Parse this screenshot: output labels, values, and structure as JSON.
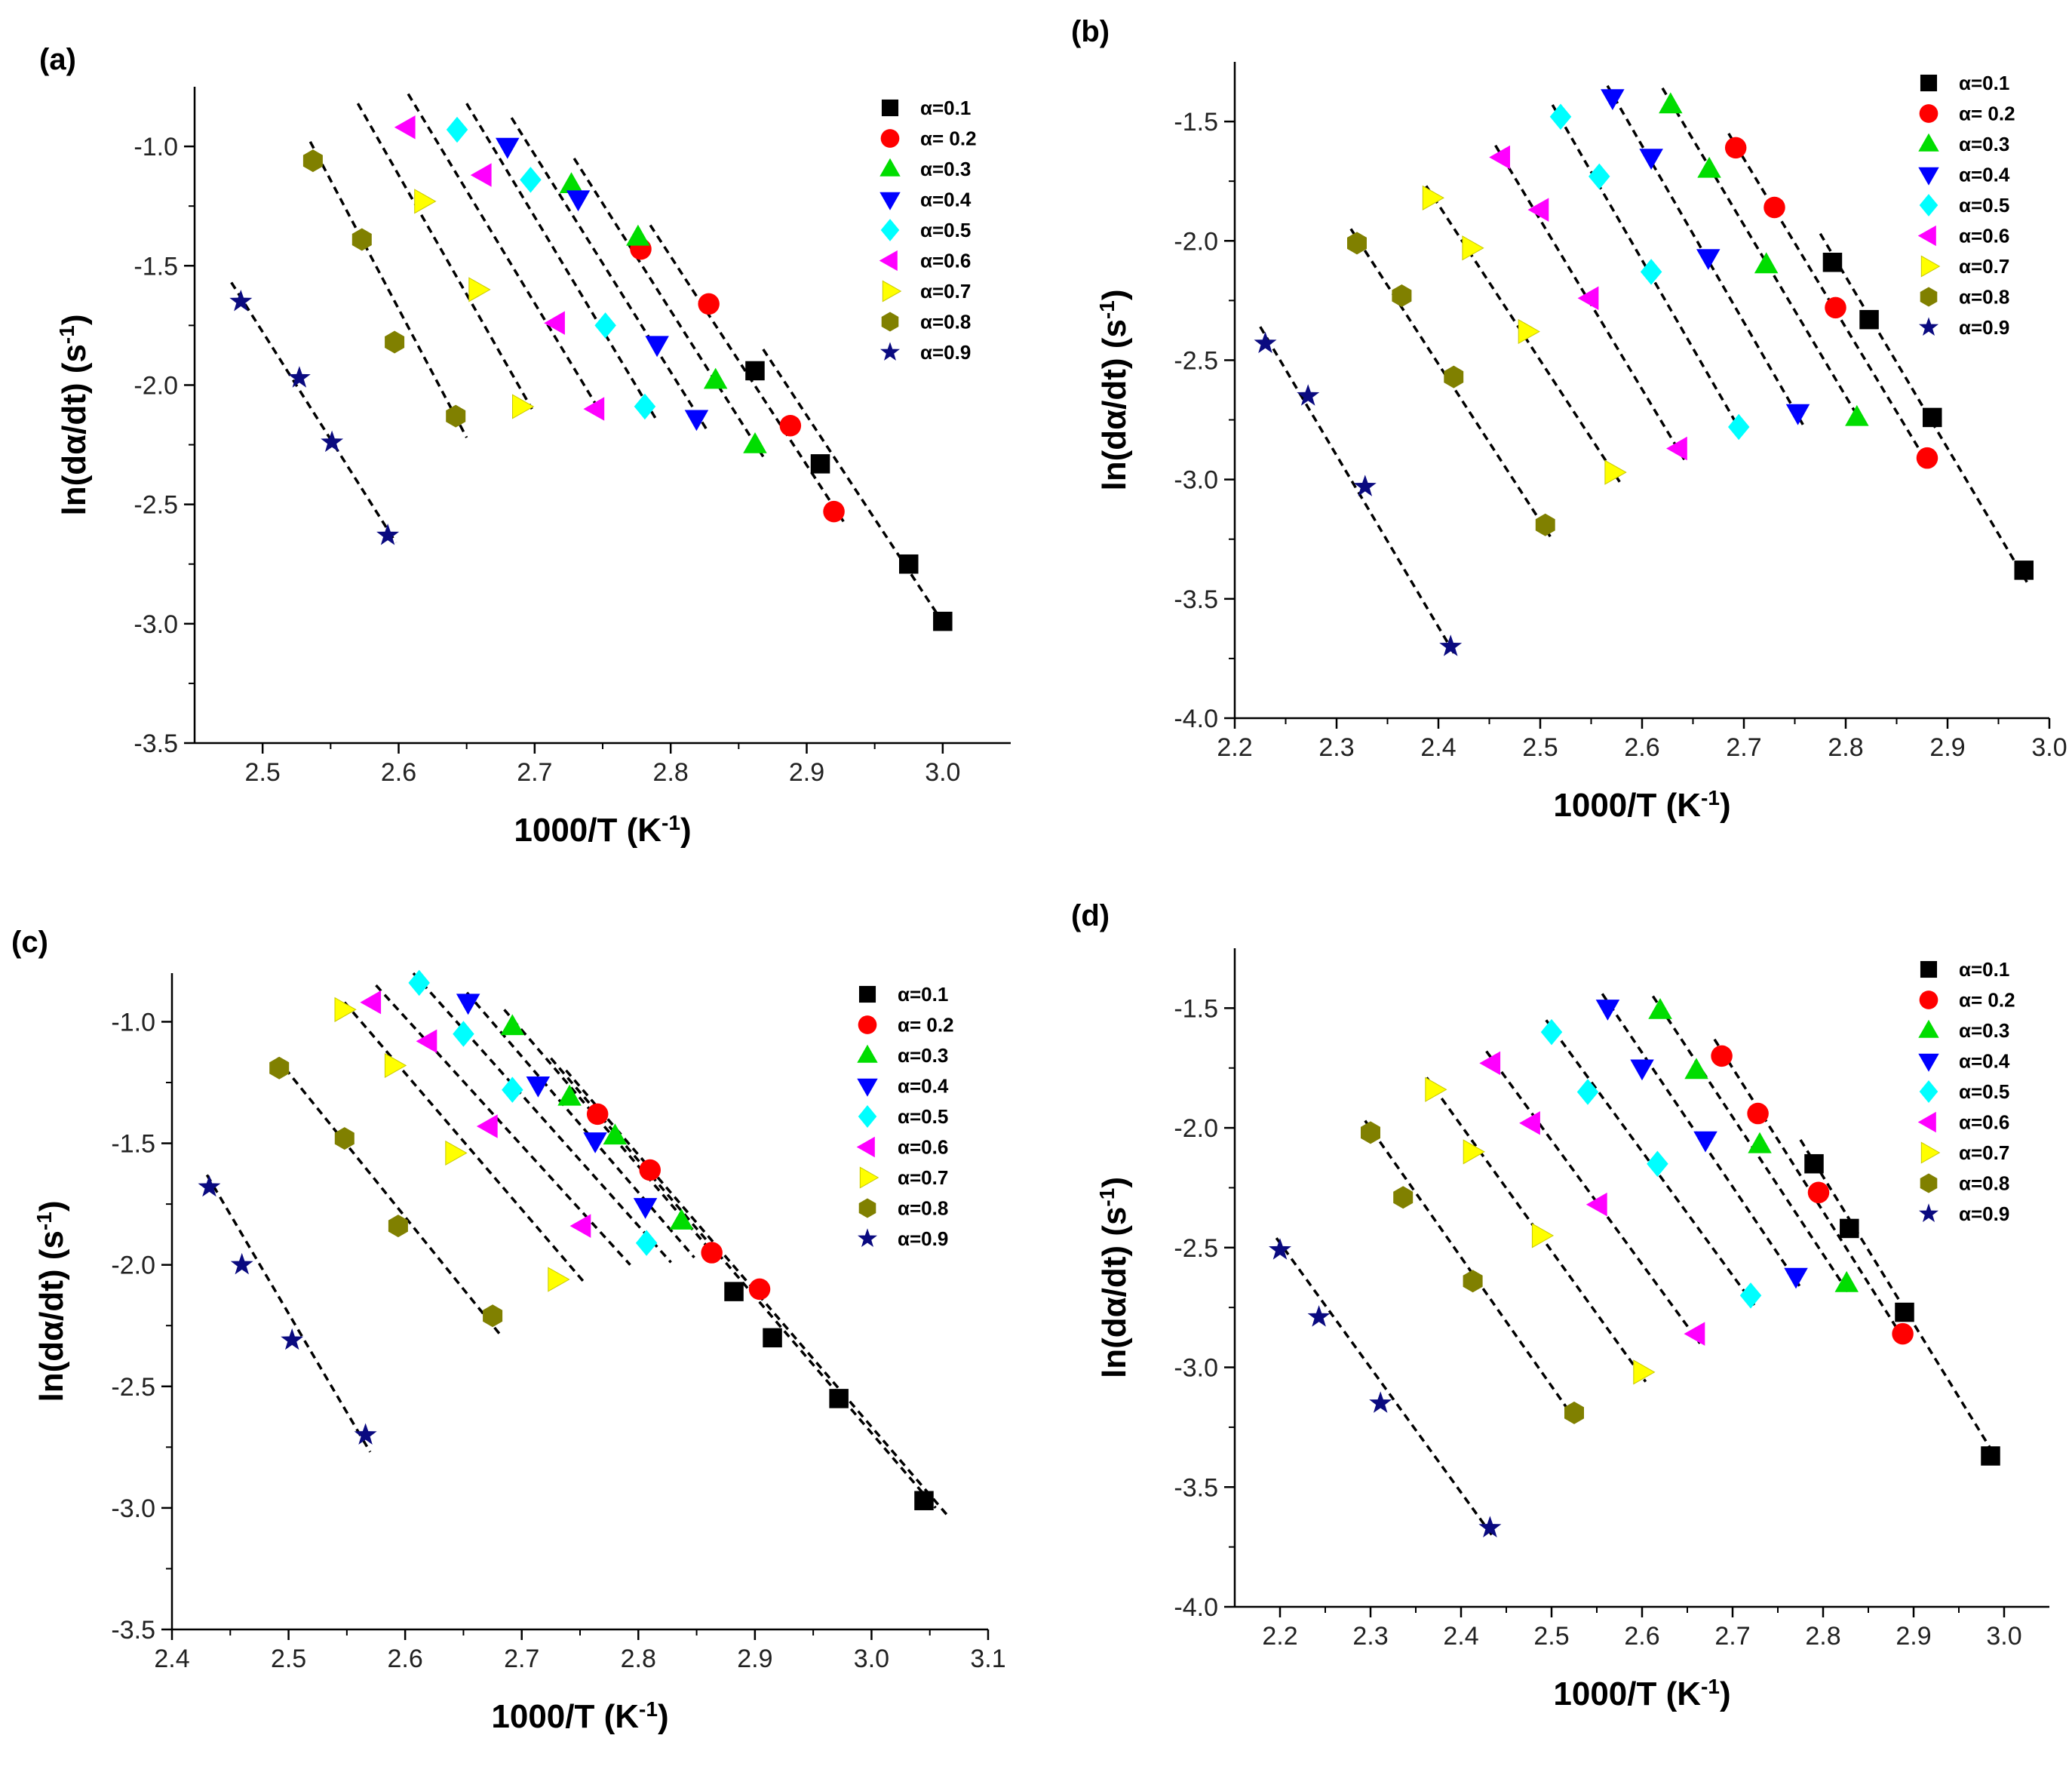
{
  "marker_colors": {
    "square": "#000000",
    "circle": "#ff0000",
    "tri-up": "#00dd00",
    "tri-down": "#0000ff",
    "diamond": "#00ffff",
    "tri-left": "#ff00ff",
    "tri-right": "#ffff00",
    "hexagon": "#808000",
    "star": "#0a0a80"
  },
  "chart_data": [
    {
      "type": "scatter",
      "panel_label": "(a)",
      "xlabel": "1000/T (K",
      "xlabel_sup": "-1",
      "xlabel_end": ")",
      "ylabel": "ln(dα/dt) (s",
      "ylabel_sup": "-1",
      "ylabel_end": ")",
      "xlim": [
        2.45,
        3.05
      ],
      "ylim": [
        -3.5,
        -0.75
      ],
      "xticks": [
        2.5,
        2.6,
        2.7,
        2.8,
        2.9,
        3.0
      ],
      "xtick_labels": [
        "2.5",
        "2.6",
        "2.7",
        "2.8",
        "2.9",
        "3.0"
      ],
      "yticks": [
        -3.5,
        -3.0,
        -2.5,
        -2.0,
        -1.5,
        -1.0
      ],
      "ytick_labels": [
        "-3.5",
        "-3.0",
        "-2.5",
        "-2.0",
        "-1.5",
        "-1.0"
      ],
      "legend_position": "top-right",
      "series": [
        {
          "name": "α=0.1",
          "marker": "square",
          "x": [
            2.862,
            2.91,
            2.975,
            3.0
          ],
          "y": [
            -1.94,
            -2.33,
            -2.75,
            -2.99
          ]
        },
        {
          "name": "α= 0.2",
          "marker": "circle",
          "x": [
            2.778,
            2.828,
            2.888,
            2.92
          ],
          "y": [
            -1.43,
            -1.66,
            -2.17,
            -2.53
          ]
        },
        {
          "name": "α=0.3",
          "marker": "tri-up",
          "x": [
            2.727,
            2.776,
            2.833,
            2.862
          ],
          "y": [
            -1.16,
            -1.38,
            -1.98,
            -2.25
          ]
        },
        {
          "name": "α=0.4",
          "marker": "tri-down",
          "x": [
            2.68,
            2.732,
            2.79,
            2.819
          ],
          "y": [
            -1.0,
            -1.22,
            -1.83,
            -2.14
          ]
        },
        {
          "name": "α=0.5",
          "marker": "diamond",
          "x": [
            2.643,
            2.697,
            2.752,
            2.781
          ],
          "y": [
            -0.93,
            -1.14,
            -1.75,
            -2.09
          ]
        },
        {
          "name": "α=0.6",
          "marker": "tri-left",
          "x": [
            2.606,
            2.662,
            2.716,
            2.745
          ],
          "y": [
            -0.92,
            -1.12,
            -1.74,
            -2.1
          ]
        },
        {
          "name": "α=0.7",
          "marker": "tri-right",
          "x": [
            2.618,
            2.658,
            2.69
          ],
          "y": [
            -1.23,
            -1.6,
            -2.09
          ]
        },
        {
          "name": "α=0.8",
          "marker": "hexagon",
          "x": [
            2.537,
            2.573,
            2.597,
            2.642
          ],
          "y": [
            -1.06,
            -1.39,
            -1.82,
            -2.13
          ]
        },
        {
          "name": "α=0.9",
          "marker": "star",
          "x": [
            2.484,
            2.527,
            2.551,
            2.592
          ],
          "y": [
            -1.65,
            -1.97,
            -2.24,
            -2.63
          ]
        }
      ],
      "fit_lines": [
        {
          "x": [
            2.868,
            3.003
          ],
          "y": [
            -1.85,
            -3.02
          ]
        },
        {
          "x": [
            2.785,
            2.928
          ],
          "y": [
            -1.33,
            -2.58
          ]
        },
        {
          "name": "α=0.3",
          "x": [
            2.729,
            2.868
          ],
          "y": [
            -1.05,
            -2.3
          ]
        },
        {
          "x": [
            2.683,
            2.828
          ],
          "y": [
            -0.88,
            -2.2
          ]
        },
        {
          "x": [
            2.65,
            2.79
          ],
          "y": [
            -0.82,
            -2.15
          ]
        },
        {
          "x": [
            2.607,
            2.747
          ],
          "y": [
            -0.78,
            -2.1
          ]
        },
        {
          "x": [
            2.57,
            2.698
          ],
          "y": [
            -0.82,
            -2.1
          ]
        },
        {
          "x": [
            2.535,
            2.65
          ],
          "y": [
            -0.98,
            -2.22
          ]
        },
        {
          "x": [
            2.477,
            2.598
          ],
          "y": [
            -1.57,
            -2.66
          ]
        }
      ]
    },
    {
      "type": "scatter",
      "panel_label": "(b)",
      "xlabel": "1000/T (K",
      "xlabel_sup": "-1",
      "xlabel_end": ")",
      "ylabel": "ln(dα/dt) (s",
      "ylabel_sup": "-1",
      "ylabel_end": ")",
      "xlim": [
        2.2,
        3.0
      ],
      "ylim": [
        -4.0,
        -1.25
      ],
      "xticks": [
        2.2,
        2.3,
        2.4,
        2.5,
        2.6,
        2.7,
        2.8,
        2.9,
        3.0
      ],
      "xtick_labels": [
        "2.2",
        "2.3",
        "2.4",
        "2.5",
        "2.6",
        "2.7",
        "2.8",
        "2.9",
        "3.0"
      ],
      "yticks": [
        -4.0,
        -3.5,
        -3.0,
        -2.5,
        -2.0,
        -1.5
      ],
      "ytick_labels": [
        "-4.0",
        "-3.5",
        "-3.0",
        "-2.5",
        "-2.0",
        "-1.5"
      ],
      "legend_position": "top-right",
      "series": [
        {
          "name": "α=0.1",
          "marker": "square",
          "x": [
            2.787,
            2.823,
            2.885,
            2.975
          ],
          "y": [
            -2.09,
            -2.33,
            -2.74,
            -3.38
          ]
        },
        {
          "name": "α= 0.2",
          "marker": "circle",
          "x": [
            2.692,
            2.73,
            2.79,
            2.88
          ],
          "y": [
            -1.61,
            -1.86,
            -2.28,
            -2.91
          ]
        },
        {
          "name": "α=0.3",
          "marker": "tri-up",
          "x": [
            2.628,
            2.666,
            2.722,
            2.811
          ],
          "y": [
            -1.43,
            -1.7,
            -2.1,
            -2.74
          ]
        },
        {
          "name": "α=0.4",
          "marker": "tri-down",
          "x": [
            2.571,
            2.609,
            2.665,
            2.753
          ],
          "y": [
            -1.4,
            -1.65,
            -2.07,
            -2.72
          ]
        },
        {
          "name": "α=0.5",
          "marker": "diamond",
          "x": [
            2.52,
            2.558,
            2.609,
            2.695
          ],
          "y": [
            -1.48,
            -1.73,
            -2.13,
            -2.78
          ]
        },
        {
          "name": "α=0.6",
          "marker": "tri-left",
          "x": [
            2.462,
            2.5,
            2.549,
            2.636
          ],
          "y": [
            -1.65,
            -1.87,
            -2.24,
            -2.87
          ]
        },
        {
          "name": "α=0.7",
          "marker": "tri-right",
          "x": [
            2.393,
            2.432,
            2.487,
            2.572
          ],
          "y": [
            -1.82,
            -2.03,
            -2.38,
            -2.97
          ]
        },
        {
          "name": "α=0.8",
          "marker": "hexagon",
          "x": [
            2.32,
            2.364,
            2.415,
            2.505
          ],
          "y": [
            -2.01,
            -2.23,
            -2.57,
            -3.19
          ]
        },
        {
          "name": "α=0.9",
          "marker": "star",
          "x": [
            2.23,
            2.272,
            2.328,
            2.412
          ],
          "y": [
            -2.43,
            -2.65,
            -3.03,
            -3.7
          ]
        }
      ],
      "fit_lines": [
        {
          "x": [
            2.775,
            2.978
          ],
          "y": [
            -1.97,
            -3.43
          ]
        },
        {
          "x": [
            2.685,
            2.883
          ],
          "y": [
            -1.55,
            -2.95
          ]
        },
        {
          "x": [
            2.62,
            2.818
          ],
          "y": [
            -1.36,
            -2.78
          ]
        },
        {
          "x": [
            2.566,
            2.758
          ],
          "y": [
            -1.35,
            -2.77
          ]
        },
        {
          "x": [
            2.512,
            2.7
          ],
          "y": [
            -1.43,
            -2.82
          ]
        },
        {
          "x": [
            2.456,
            2.642
          ],
          "y": [
            -1.6,
            -2.92
          ]
        },
        {
          "x": [
            2.388,
            2.578
          ],
          "y": [
            -1.77,
            -3.01
          ]
        },
        {
          "x": [
            2.314,
            2.51
          ],
          "y": [
            -1.95,
            -3.24
          ]
        },
        {
          "x": [
            2.225,
            2.417
          ],
          "y": [
            -2.36,
            -3.74
          ]
        }
      ]
    },
    {
      "type": "scatter",
      "panel_label": "(c)",
      "xlabel": "1000/T (K",
      "xlabel_sup": "-1",
      "xlabel_end": ")",
      "ylabel": "ln(dα/dt) (s",
      "ylabel_sup": "-1",
      "ylabel_end": ")",
      "xlim": [
        2.4,
        3.1
      ],
      "ylim": [
        -3.5,
        -0.8
      ],
      "xticks": [
        2.4,
        2.5,
        2.6,
        2.7,
        2.8,
        2.9,
        3.0,
        3.1
      ],
      "xtick_labels": [
        "2.4",
        "2.5",
        "2.6",
        "2.7",
        "2.8",
        "2.9",
        "3.0",
        "3.1"
      ],
      "yticks": [
        -3.5,
        -3.0,
        -2.5,
        -2.0,
        -1.5,
        -1.0
      ],
      "ytick_labels": [
        "-3.5",
        "-3.0",
        "-2.5",
        "-2.0",
        "-1.5",
        "-1.0"
      ],
      "legend_position": "top-right",
      "series": [
        {
          "name": "α=0.1",
          "marker": "square",
          "x": [
            2.882,
            2.915,
            2.972,
            3.045
          ],
          "y": [
            -2.11,
            -2.3,
            -2.55,
            -2.97
          ]
        },
        {
          "name": "α= 0.2",
          "marker": "circle",
          "x": [
            2.765,
            2.81,
            2.863,
            2.904
          ],
          "y": [
            -1.38,
            -1.61,
            -1.95,
            -2.1
          ]
        },
        {
          "name": "α=0.3",
          "marker": "tri-up",
          "x": [
            2.692,
            2.741,
            2.78,
            2.837
          ],
          "y": [
            -1.02,
            -1.31,
            -1.47,
            -1.82
          ]
        },
        {
          "name": "α=0.4",
          "marker": "tri-down",
          "x": [
            2.654,
            2.714,
            2.763,
            2.806
          ],
          "y": [
            -0.92,
            -1.26,
            -1.49,
            -1.76
          ]
        },
        {
          "name": "α=0.5",
          "marker": "diamond",
          "x": [
            2.612,
            2.65,
            2.692,
            2.807
          ],
          "y": [
            -0.84,
            -1.05,
            -1.28,
            -1.91
          ]
        },
        {
          "name": "α=0.6",
          "marker": "tri-left",
          "x": [
            2.572,
            2.62,
            2.672,
            2.752
          ],
          "y": [
            -0.92,
            -1.08,
            -1.43,
            -1.84
          ]
        },
        {
          "name": "α=0.7",
          "marker": "tri-right",
          "x": [
            2.547,
            2.59,
            2.642,
            2.73
          ],
          "y": [
            -0.95,
            -1.18,
            -1.54,
            -2.06
          ]
        },
        {
          "name": "α=0.8",
          "marker": "hexagon",
          "x": [
            2.492,
            2.548,
            2.594,
            2.675
          ],
          "y": [
            -1.19,
            -1.48,
            -1.84,
            -2.21
          ]
        },
        {
          "name": "α=0.9",
          "marker": "star",
          "x": [
            2.432,
            2.46,
            2.503,
            2.566
          ],
          "y": [
            -1.68,
            -2.0,
            -2.31,
            -2.7
          ]
        }
      ],
      "fit_lines": [
        {
          "x": [
            2.738,
            3.065
          ],
          "y": [
            -1.2,
            -3.03
          ]
        },
        {
          "x": [
            2.725,
            3.055
          ],
          "y": [
            -1.15,
            -3.0
          ]
        },
        {
          "x": [
            2.685,
            2.86
          ],
          "y": [
            -0.95,
            -1.93
          ]
        },
        {
          "x": [
            2.653,
            2.848
          ],
          "y": [
            -0.88,
            -1.97
          ]
        },
        {
          "x": [
            2.607,
            2.828
          ],
          "y": [
            -0.8,
            -1.99
          ]
        },
        {
          "x": [
            2.575,
            2.793
          ],
          "y": [
            -0.85,
            -2.0
          ]
        },
        {
          "x": [
            2.548,
            2.755
          ],
          "y": [
            -0.92,
            -2.08
          ]
        },
        {
          "x": [
            2.49,
            2.682
          ],
          "y": [
            -1.15,
            -2.29
          ]
        },
        {
          "x": [
            2.43,
            2.57
          ],
          "y": [
            -1.63,
            -2.77
          ]
        }
      ]
    },
    {
      "type": "scatter",
      "panel_label": "(d)",
      "xlabel": "1000/T (K",
      "xlabel_sup": "-1",
      "xlabel_end": ")",
      "ylabel": "ln(dα/dt) (s",
      "ylabel_sup": "-1",
      "ylabel_end": ")",
      "xlim": [
        2.15,
        3.05
      ],
      "ylim": [
        -4.0,
        -1.25
      ],
      "xticks": [
        2.2,
        2.3,
        2.4,
        2.5,
        2.6,
        2.7,
        2.8,
        2.9,
        3.0
      ],
      "xtick_labels": [
        "2.2",
        "2.3",
        "2.4",
        "2.5",
        "2.6",
        "2.7",
        "2.8",
        "2.9",
        "3.0"
      ],
      "yticks": [
        -4.0,
        -3.5,
        -3.0,
        -2.5,
        -2.0,
        -1.5
      ],
      "ytick_labels": [
        "-4.0",
        "-3.5",
        "-3.0",
        "-2.5",
        "-2.0",
        "-1.5"
      ],
      "legend_position": "top-right",
      "series": [
        {
          "name": "α=0.1",
          "marker": "square",
          "x": [
            2.79,
            2.829,
            2.89,
            2.985
          ],
          "y": [
            -2.15,
            -2.42,
            -2.77,
            -3.37
          ]
        },
        {
          "name": "α= 0.2",
          "marker": "circle",
          "x": [
            2.688,
            2.728,
            2.795,
            2.888
          ],
          "y": [
            -1.7,
            -1.94,
            -2.27,
            -2.86
          ]
        },
        {
          "name": "α=0.3",
          "marker": "tri-up",
          "x": [
            2.62,
            2.66,
            2.73,
            2.826
          ],
          "y": [
            -1.51,
            -1.76,
            -2.07,
            -2.65
          ]
        },
        {
          "name": "α=0.4",
          "marker": "tri-down",
          "x": [
            2.562,
            2.6,
            2.67,
            2.77
          ],
          "y": [
            -1.5,
            -1.75,
            -2.05,
            -2.62
          ]
        },
        {
          "name": "α=0.5",
          "marker": "diamond",
          "x": [
            2.5,
            2.54,
            2.617,
            2.72
          ],
          "y": [
            -1.6,
            -1.85,
            -2.15,
            -2.7
          ]
        },
        {
          "name": "α=0.6",
          "marker": "tri-left",
          "x": [
            2.434,
            2.478,
            2.552,
            2.66
          ],
          "y": [
            -1.73,
            -1.98,
            -2.32,
            -2.86
          ]
        },
        {
          "name": "α=0.7",
          "marker": "tri-right",
          "x": [
            2.37,
            2.412,
            2.488,
            2.6
          ],
          "y": [
            -1.84,
            -2.1,
            -2.45,
            -3.02
          ]
        },
        {
          "name": "α=0.8",
          "marker": "hexagon",
          "x": [
            2.3,
            2.336,
            2.413,
            2.525
          ],
          "y": [
            -2.02,
            -2.29,
            -2.64,
            -3.19
          ]
        },
        {
          "name": "α=0.9",
          "marker": "star",
          "x": [
            2.2,
            2.243,
            2.311,
            2.432
          ],
          "y": [
            -2.51,
            -2.79,
            -3.15,
            -3.67
          ]
        }
      ],
      "fit_lines": [
        {
          "x": [
            2.775,
            2.99
          ],
          "y": [
            -2.05,
            -3.37
          ]
        },
        {
          "x": [
            2.68,
            2.892
          ],
          "y": [
            -1.63,
            -2.9
          ]
        },
        {
          "x": [
            2.612,
            2.83
          ],
          "y": [
            -1.45,
            -2.7
          ]
        },
        {
          "x": [
            2.556,
            2.774
          ],
          "y": [
            -1.44,
            -2.66
          ]
        },
        {
          "x": [
            2.494,
            2.724
          ],
          "y": [
            -1.55,
            -2.74
          ]
        },
        {
          "x": [
            2.428,
            2.664
          ],
          "y": [
            -1.68,
            -2.9
          ]
        },
        {
          "x": [
            2.362,
            2.604
          ],
          "y": [
            -1.79,
            -3.06
          ]
        },
        {
          "x": [
            2.294,
            2.53
          ],
          "y": [
            -1.97,
            -3.24
          ]
        },
        {
          "x": [
            2.196,
            2.436
          ],
          "y": [
            -2.46,
            -3.71
          ]
        }
      ]
    }
  ]
}
